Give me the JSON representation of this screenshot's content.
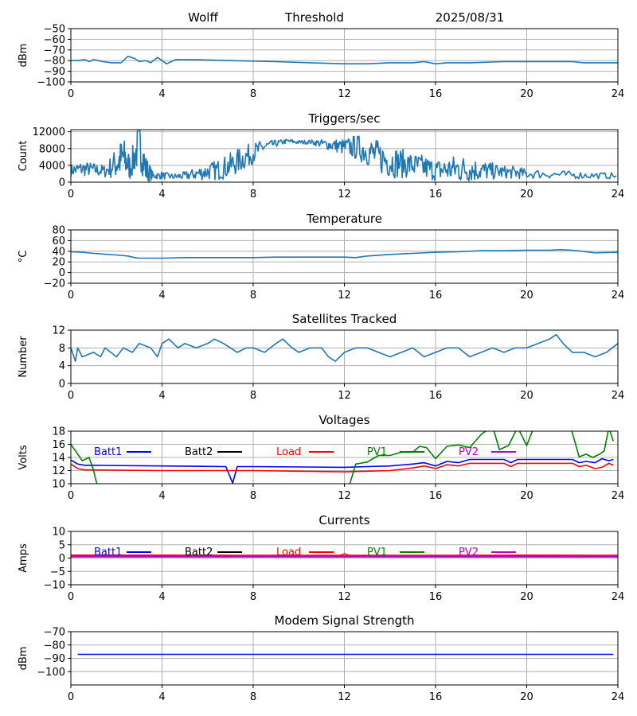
{
  "header": {
    "station": "Wolff",
    "mode": "Threshold",
    "date": "2025/08/31"
  },
  "colors": {
    "trace": "#1f77b4",
    "grid": "#b0b0b0",
    "batt1": "#0000ff",
    "batt2": "#000000",
    "load": "#ff0000",
    "pv1": "#008000",
    "pv2": "#bf00bf",
    "modem": "#0000ff"
  },
  "chart_data": [
    {
      "id": "threshold",
      "type": "line",
      "title": "",
      "ylabel": "dBm",
      "xlim": [
        0,
        24
      ],
      "ylim": [
        -100,
        -50
      ],
      "xticks": [
        0,
        4,
        8,
        12,
        16,
        20,
        24
      ],
      "yticks": [
        -100,
        -90,
        -80,
        -70,
        -60,
        -50
      ],
      "series": [
        {
          "color": "trace",
          "x": [
            0,
            0.3,
            0.6,
            0.8,
            1,
            1.4,
            1.8,
            2.2,
            2.5,
            2.8,
            3.0,
            3.3,
            3.5,
            3.8,
            4.2,
            4.6,
            5.5,
            7,
            9,
            10.5,
            12,
            13,
            14,
            15,
            15.5,
            16,
            16.5,
            17.5,
            19,
            20.5,
            22,
            22.5,
            23,
            24
          ],
          "y": [
            -80,
            -80,
            -79,
            -81,
            -79,
            -81,
            -82,
            -82,
            -76,
            -78,
            -81,
            -80,
            -82,
            -77,
            -83,
            -79,
            -79,
            -80,
            -81,
            -82,
            -83,
            -83,
            -82,
            -82,
            -81,
            -83,
            -82,
            -82,
            -81,
            -81,
            -81,
            -82,
            -82,
            -82
          ]
        }
      ]
    },
    {
      "id": "triggers",
      "type": "line",
      "title": "Triggers/sec",
      "ylabel": "Count",
      "xlim": [
        0,
        24
      ],
      "ylim": [
        0,
        12500
      ],
      "xticks": [
        0,
        4,
        8,
        12,
        16,
        20,
        24
      ],
      "yticks": [
        0,
        4000,
        8000,
        12000
      ],
      "series": [
        {
          "color": "trace",
          "x": [
            0,
            0.5,
            1,
            1.5,
            2,
            2.3,
            2.6,
            3,
            3.3,
            3.6,
            4,
            4.5,
            5,
            5.5,
            6,
            6.5,
            7,
            7.5,
            8,
            8.5,
            9,
            9.5,
            10,
            10.5,
            11,
            11.5,
            12,
            12.5,
            13,
            13.5,
            14,
            14.5,
            15,
            15.5,
            16,
            16.5,
            17,
            17.5,
            18,
            18.5,
            19,
            19.5,
            20,
            21,
            22,
            23,
            24
          ],
          "y": [
            2800,
            3200,
            3000,
            2600,
            4500,
            6000,
            3500,
            9000,
            3000,
            1500,
            1600,
            1300,
            1500,
            2000,
            2500,
            3000,
            4000,
            5500,
            7000,
            8500,
            9200,
            9800,
            9500,
            9600,
            9200,
            8800,
            8400,
            8300,
            7500,
            6000,
            5000,
            4500,
            4000,
            3500,
            2800,
            3000,
            3200,
            3000,
            2800,
            2600,
            2400,
            2300,
            2000,
            1900,
            1700,
            1600,
            1500
          ],
          "spread": [
            1500,
            1800,
            1600,
            1500,
            4000,
            5000,
            3000,
            5500,
            3500,
            800,
            900,
            700,
            1000,
            1500,
            2000,
            2500,
            3000,
            3000,
            2500,
            1500,
            800,
            500,
            500,
            500,
            1000,
            1500,
            2000,
            3000,
            3500,
            4000,
            4000,
            3500,
            3000,
            3000,
            2500,
            3000,
            3500,
            3000,
            2500,
            2000,
            1500,
            1500,
            1200,
            1000,
            900,
            800,
            700
          ]
        }
      ]
    },
    {
      "id": "temperature",
      "type": "line",
      "title": "Temperature",
      "ylabel": "°C",
      "xlim": [
        0,
        24
      ],
      "ylim": [
        -20,
        80
      ],
      "xticks": [
        0,
        4,
        8,
        12,
        16,
        20,
        24
      ],
      "yticks": [
        -20,
        0,
        20,
        40,
        60,
        80
      ],
      "series": [
        {
          "color": "trace",
          "x": [
            0,
            0.5,
            1,
            2,
            2.5,
            2.8,
            3,
            4,
            5,
            6,
            7,
            8,
            9,
            10,
            11,
            12,
            12.5,
            13,
            14,
            15,
            16,
            17,
            18,
            19,
            20,
            21,
            21.5,
            22,
            23,
            24
          ],
          "y": [
            39,
            38,
            36,
            33,
            31,
            28,
            27,
            27,
            28,
            28,
            28,
            28,
            29,
            29,
            29,
            29,
            28,
            31,
            34,
            36,
            38,
            39,
            41,
            41,
            42,
            42,
            43,
            42,
            37,
            38
          ]
        }
      ]
    },
    {
      "id": "satellites",
      "type": "line",
      "title": "Satellites Tracked",
      "ylabel": "Number",
      "xlim": [
        0,
        24
      ],
      "ylim": [
        0,
        12
      ],
      "xticks": [
        0,
        4,
        8,
        12,
        16,
        20,
        24
      ],
      "yticks": [
        0,
        4,
        8,
        12
      ],
      "series": [
        {
          "color": "trace",
          "x": [
            0,
            0.2,
            0.3,
            0.5,
            1,
            1.3,
            1.5,
            2,
            2.3,
            2.7,
            3,
            3.5,
            3.8,
            4,
            4.3,
            4.7,
            5,
            5.5,
            6,
            6.3,
            6.7,
            7,
            7.3,
            7.7,
            8,
            8.5,
            9,
            9.3,
            9.7,
            10,
            10.5,
            11,
            11.3,
            11.6,
            12,
            12.5,
            13,
            13.5,
            14,
            14.5,
            15,
            15.5,
            16,
            16.5,
            17,
            17.5,
            18,
            18.5,
            19,
            19.5,
            20,
            20.5,
            21,
            21.3,
            21.6,
            22,
            22.5,
            23,
            23.5,
            24
          ],
          "y": [
            8,
            5,
            8,
            6,
            7,
            6,
            8,
            6,
            8,
            7,
            9,
            8,
            6,
            9,
            10,
            8,
            9,
            8,
            9,
            10,
            9,
            8,
            7,
            8,
            8,
            7,
            9,
            10,
            8,
            7,
            8,
            8,
            6,
            5,
            7,
            8,
            8,
            7,
            6,
            7,
            8,
            6,
            7,
            8,
            8,
            6,
            7,
            8,
            7,
            8,
            8,
            9,
            10,
            11,
            9,
            7,
            7,
            6,
            7,
            9
          ]
        }
      ]
    },
    {
      "id": "voltages",
      "type": "line",
      "title": "Voltages",
      "ylabel": "Volts",
      "xlim": [
        0,
        24
      ],
      "ylim": [
        10,
        18
      ],
      "xticks": [
        0,
        4,
        8,
        12,
        16,
        20,
        24
      ],
      "yticks": [
        10,
        12,
        14,
        16,
        18
      ],
      "legend": [
        "Batt1",
        "Batt2",
        "Load",
        "PV1",
        "PV2"
      ],
      "series": [
        {
          "name": "Batt1",
          "color": "batt1",
          "x": [
            0,
            0.3,
            0.6,
            1,
            4,
            6.8,
            7.1,
            7.3,
            8,
            12,
            13,
            14,
            15,
            15.5,
            16,
            16.5,
            17,
            17.5,
            19,
            19.3,
            19.6,
            20,
            21.5,
            22,
            22.3,
            22.6,
            23,
            23.3,
            23.6,
            23.8
          ],
          "y": [
            13.6,
            13,
            12.8,
            12.8,
            12.7,
            12.6,
            10.1,
            12.6,
            12.6,
            12.5,
            12.6,
            12.7,
            13,
            13.2,
            12.7,
            13.4,
            13.2,
            13.7,
            13.7,
            13.2,
            13.7,
            13.7,
            13.7,
            13.7,
            13.2,
            13.4,
            13.2,
            13.8,
            13.5,
            13.7
          ]
        },
        {
          "name": "Load",
          "color": "load",
          "x": [
            0,
            0.3,
            0.6,
            1,
            4,
            8,
            12,
            13,
            14,
            15,
            15.5,
            16,
            16.5,
            17,
            17.5,
            19,
            19.3,
            19.6,
            20,
            21.5,
            22,
            22.3,
            22.6,
            23,
            23.3,
            23.6,
            23.8
          ],
          "y": [
            13,
            12.3,
            12.1,
            12.1,
            12,
            12,
            11.8,
            11.9,
            12,
            12.4,
            12.7,
            12.3,
            12.9,
            12.7,
            13.1,
            13.1,
            12.6,
            13.1,
            13.1,
            13.1,
            13.1,
            12.6,
            12.8,
            12.3,
            12.5,
            13.1,
            12.8
          ]
        },
        {
          "name": "PV1",
          "color": "pv1",
          "x": [
            0,
            0.5,
            0.8,
            1,
            1.1,
            1.2,
            12.2,
            12.5,
            13,
            13.5,
            14,
            14.5,
            15,
            15.3,
            15.6,
            16,
            16.5,
            17,
            17.5,
            18,
            18.5,
            18.8,
            19.2,
            19.6,
            20,
            20.3,
            20.5,
            21,
            21.6,
            21.9,
            22.3,
            22.6,
            22.9,
            23.2,
            23.4,
            23.6,
            23.8
          ],
          "y": [
            16,
            13.5,
            14,
            12,
            10.5,
            9.5,
            9.5,
            13,
            13.3,
            14.3,
            14.3,
            14.8,
            14.8,
            15.7,
            15.5,
            13.8,
            15.7,
            15.9,
            15.5,
            17.5,
            18.8,
            15.2,
            15.8,
            18.6,
            15.8,
            18.5,
            19,
            19,
            19,
            19,
            14.1,
            14.5,
            14,
            14.5,
            15,
            18.5,
            16.5
          ]
        }
      ]
    },
    {
      "id": "currents",
      "type": "line",
      "title": "Currents",
      "ylabel": "Amps",
      "xlim": [
        0,
        24
      ],
      "ylim": [
        -10,
        10
      ],
      "xticks": [
        0,
        4,
        8,
        12,
        16,
        20,
        24
      ],
      "yticks": [
        -10,
        -5,
        0,
        5,
        10
      ],
      "legend": [
        "Batt1",
        "Batt2",
        "Load",
        "PV1",
        "PV2"
      ],
      "series": [
        {
          "name": "Batt1",
          "color": "batt1",
          "x": [
            0,
            24
          ],
          "y": [
            0.5,
            0.5
          ]
        },
        {
          "name": "PV1",
          "color": "pv1",
          "x": [
            0,
            24
          ],
          "y": [
            0.8,
            0.8
          ]
        },
        {
          "name": "PV2",
          "color": "pv2",
          "x": [
            0,
            24
          ],
          "y": [
            0.7,
            0.7
          ]
        },
        {
          "name": "Load",
          "color": "load",
          "x": [
            0,
            4,
            8,
            11.8,
            12,
            12.2,
            16,
            20,
            24
          ],
          "y": [
            1.1,
            1.1,
            1.0,
            1.0,
            1.6,
            1.0,
            1.0,
            1.1,
            1.0
          ]
        }
      ]
    },
    {
      "id": "modem",
      "type": "line",
      "title": "Modem Signal Strength",
      "ylabel": "dBm",
      "xlim": [
        0,
        24
      ],
      "ylim": [
        -110,
        -70
      ],
      "xticks": [
        0,
        4,
        8,
        12,
        16,
        20,
        24
      ],
      "yticks": [
        -100,
        -90,
        -80,
        -70
      ],
      "series": [
        {
          "color": "modem",
          "x": [
            0.3,
            23.8
          ],
          "y": [
            -87,
            -87
          ]
        }
      ]
    }
  ]
}
